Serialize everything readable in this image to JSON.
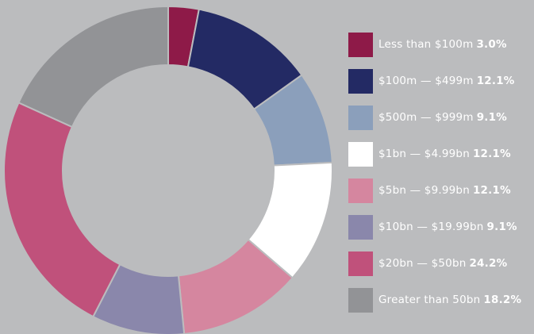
{
  "chart_data": {
    "type": "pie",
    "variant": "donut",
    "title": "",
    "legend_position": "right",
    "series": [
      {
        "values": [
          3.0,
          12.1,
          9.1,
          12.1,
          12.1,
          9.1,
          24.2,
          18.2
        ]
      }
    ],
    "categories": [
      "Less than $100m",
      "$100m — $499m",
      "$500m — $999m",
      "$1bn — $4.99bn",
      "$5bn — $9.99bn",
      "$10bn — $19.99bn",
      "$20bn — $50bn",
      "Greater than 50bn"
    ],
    "value_labels": [
      "3.0%",
      "12.1%",
      "9.1%",
      "12.1%",
      "12.1%",
      "9.1%",
      "24.2%",
      "18.2%"
    ],
    "colors": [
      "#8e1a48",
      "#232a64",
      "#8b9fbb",
      "#ffffff",
      "#d5869f",
      "#8a87ab",
      "#c0517b",
      "#929396"
    ]
  },
  "background_color": "#bbbcbe"
}
